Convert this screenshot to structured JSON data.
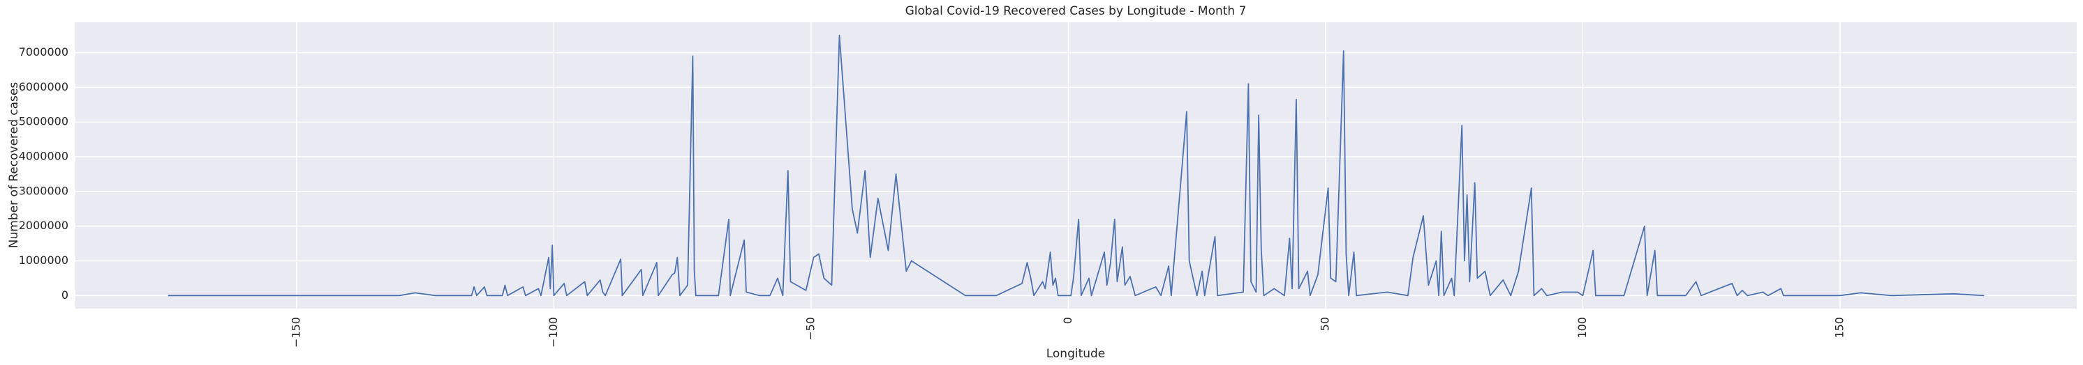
{
  "chart_data": {
    "type": "line",
    "title": "Global Covid-19 Recovered Cases by Longitude - Month 7",
    "xlabel": "Longitude",
    "ylabel": "Number of Recovered cases",
    "x": [
      -175,
      -130,
      -127,
      -123,
      -116,
      -115.5,
      -115,
      -113.5,
      -113,
      -110,
      -109.5,
      -109,
      -106,
      -105.5,
      -103,
      -102.5,
      -101,
      -100.7,
      -100.3,
      -100,
      -98,
      -97.5,
      -94,
      -93.5,
      -91,
      -90.5,
      -90,
      -87,
      -86.7,
      -83,
      -82.7,
      -80,
      -79.7,
      -77,
      -76.5,
      -76,
      -75.5,
      -74,
      -73,
      -72.7,
      -72.4,
      -68,
      -66,
      -65.7,
      -63,
      -62.6,
      -60,
      -58,
      -56.5,
      -55.5,
      -54.5,
      -54,
      -51,
      -49.5,
      -48.5,
      -47.5,
      -46,
      -44.5,
      -42,
      -41,
      -39.5,
      -38.5,
      -37,
      -35,
      -33.5,
      -31.5,
      -30.5,
      -20,
      -14,
      -9,
      -8,
      -7.3,
      -6.7,
      -5,
      -4.5,
      -3.5,
      -3,
      -2.5,
      -2,
      0.5,
      1,
      2,
      2.5,
      4,
      4.5,
      7,
      7.5,
      8.2,
      9,
      9.5,
      10.5,
      11,
      12,
      13,
      17,
      18,
      19.5,
      20,
      23,
      23.5,
      25,
      26,
      26.5,
      28.5,
      29,
      34,
      35,
      35.5,
      36.5,
      37,
      37.5,
      38,
      40,
      42,
      43,
      43.5,
      44.3,
      44.8,
      46.5,
      47,
      48.5,
      50.5,
      51,
      52,
      53.5,
      54,
      54.5,
      55.5,
      56,
      62,
      66,
      67,
      69,
      70,
      71.5,
      72,
      72.5,
      73,
      74.5,
      75,
      76.5,
      77,
      77.5,
      78,
      79,
      79.5,
      81,
      82,
      84.5,
      86,
      87.5,
      90,
      90.5,
      92,
      93,
      96,
      99,
      100,
      102,
      102.5,
      108,
      112,
      112.5,
      114,
      114.5,
      120,
      122,
      123,
      129,
      130,
      131,
      132,
      135,
      136,
      138.5,
      139,
      150,
      154,
      160,
      172,
      178
    ],
    "values": [
      0,
      0,
      80000,
      0,
      0,
      250000,
      0,
      250000,
      0,
      0,
      300000,
      0,
      250000,
      0,
      200000,
      0,
      1100000,
      200000,
      1450000,
      0,
      350000,
      0,
      400000,
      0,
      450000,
      100000,
      0,
      1050000,
      0,
      750000,
      0,
      950000,
      0,
      600000,
      650000,
      1100000,
      0,
      300000,
      6900000,
      700000,
      0,
      0,
      2200000,
      0,
      1600000,
      100000,
      0,
      0,
      500000,
      0,
      3600000,
      400000,
      150000,
      1100000,
      1200000,
      500000,
      300000,
      7500000,
      2500000,
      1800000,
      3600000,
      1100000,
      2800000,
      1300000,
      3500000,
      700000,
      1000000,
      0,
      0,
      350000,
      950000,
      500000,
      0,
      400000,
      200000,
      1250000,
      300000,
      500000,
      0,
      0,
      500000,
      2200000,
      0,
      500000,
      0,
      1250000,
      300000,
      950000,
      2200000,
      400000,
      1400000,
      300000,
      550000,
      0,
      250000,
      0,
      850000,
      0,
      5300000,
      1000000,
      0,
      700000,
      0,
      1700000,
      0,
      100000,
      6100000,
      400000,
      100000,
      5200000,
      1300000,
      0,
      200000,
      0,
      1650000,
      200000,
      5650000,
      200000,
      700000,
      0,
      600000,
      3100000,
      500000,
      400000,
      7050000,
      1200000,
      0,
      1250000,
      0,
      100000,
      0,
      1100000,
      2300000,
      300000,
      1000000,
      0,
      1850000,
      0,
      500000,
      0,
      4900000,
      1000000,
      2900000,
      400000,
      3250000,
      500000,
      700000,
      0,
      450000,
      0,
      700000,
      3100000,
      0,
      200000,
      0,
      100000,
      100000,
      0,
      1300000,
      0,
      0,
      2000000,
      0,
      1300000,
      0,
      0,
      400000,
      0,
      350000,
      0,
      150000,
      0,
      100000,
      0,
      200000,
      0,
      0,
      80000,
      0,
      50000,
      0
    ],
    "color": "#4c72b0",
    "xlim": [
      -193,
      196
    ],
    "xticks": [
      {
        "value": -150,
        "label": "−150"
      },
      {
        "value": -100,
        "label": "−100"
      },
      {
        "value": -50,
        "label": "−50"
      },
      0,
      50,
      100,
      150
    ],
    "ylim": [
      -375000,
      7875000
    ],
    "yticks": [
      0,
      1000000,
      2000000,
      3000000,
      4000000,
      5000000,
      6000000,
      7000000
    ],
    "grid": true
  }
}
